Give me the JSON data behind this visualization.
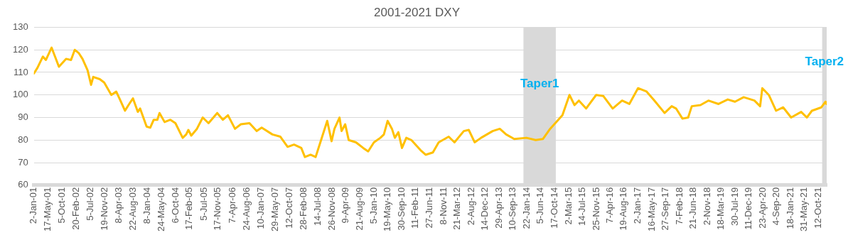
{
  "chart_data": {
    "type": "line",
    "title": "2001-2021 DXY",
    "color": "#ffc000",
    "grid": "y",
    "x": [
      "2001-01-02",
      "2001-02-05",
      "2001-03-30",
      "2001-04-28",
      "2001-06-22",
      "2001-09-01",
      "2001-11-09",
      "2001-12-27",
      "2002-02-01",
      "2002-03-13",
      "2002-04-17",
      "2002-06-05",
      "2002-07-09",
      "2002-07-30",
      "2002-10-01",
      "2002-11-13",
      "2003-01-21",
      "2003-03-09",
      "2003-04-14",
      "2003-06-02",
      "2003-07-06",
      "2003-08-18",
      "2003-10-04",
      "2003-10-26",
      "2003-12-28",
      "2004-02-01",
      "2004-03-06",
      "2004-04-10",
      "2004-05-01",
      "2004-06-19",
      "2004-08-14",
      "2004-10-02",
      "2004-12-11",
      "2005-01-14",
      "2005-02-04",
      "2005-03-04",
      "2005-04-28",
      "2005-06-23",
      "2005-08-18",
      "2005-11-10",
      "2006-01-04",
      "2006-02-22",
      "2006-05-01",
      "2006-06-27",
      "2006-09-18",
      "2006-11-27",
      "2007-01-14",
      "2007-04-28",
      "2007-07-14",
      "2007-09-22",
      "2007-11-23",
      "2008-02-01",
      "2008-03-07",
      "2008-05-01",
      "2008-06-19",
      "2008-08-14",
      "2008-10-09",
      "2008-11-20",
      "2008-12-18",
      "2009-02-05",
      "2009-02-25",
      "2009-04-01",
      "2009-05-05",
      "2009-07-14",
      "2009-09-22",
      "2009-11-09",
      "2010-01-04",
      "2010-03-07",
      "2010-04-10",
      "2010-05-16",
      "2010-06-27",
      "2010-07-25",
      "2010-08-28",
      "2010-10-02",
      "2010-11-13",
      "2011-01-01",
      "2011-03-31",
      "2011-05-19",
      "2011-07-28",
      "2011-09-22",
      "2011-12-28",
      "2012-02-22",
      "2012-05-22",
      "2012-07-09",
      "2012-09-04",
      "2012-11-05",
      "2013-02-25",
      "2013-05-05",
      "2013-07-06",
      "2013-09-22",
      "2014-01-18",
      "2014-04-17",
      "2014-06-27",
      "2014-09-04",
      "2015-01-01",
      "2015-03-10",
      "2015-04-28",
      "2015-06-09",
      "2015-08-18",
      "2015-11-23",
      "2016-02-01",
      "2016-05-01",
      "2016-07-31",
      "2016-10-09",
      "2017-01-01",
      "2017-03-25",
      "2017-06-09",
      "2017-09-15",
      "2017-11-23",
      "2018-01-04",
      "2018-03-07",
      "2018-05-01",
      "2018-06-05",
      "2018-08-28",
      "2018-11-13",
      "2019-02-19",
      "2019-05-19",
      "2019-07-28",
      "2019-10-20",
      "2020-02-01",
      "2020-03-27",
      "2020-04-17",
      "2020-06-19",
      "2020-08-28",
      "2020-11-05",
      "2021-01-21",
      "2021-04-28",
      "2021-06-22",
      "2021-08-10",
      "2021-11-09",
      "2021-12-20",
      "2021-12-31"
    ],
    "values": [
      109.5,
      112,
      117,
      115.5,
      121,
      112.5,
      116,
      115.5,
      120,
      118.5,
      116,
      111,
      104.5,
      108,
      107,
      105.5,
      100,
      101.5,
      98,
      93,
      95.5,
      98.5,
      92.5,
      94,
      86,
      85.5,
      89,
      89,
      92,
      88,
      89,
      87.5,
      81,
      82.5,
      84.5,
      82,
      85,
      90,
      87.5,
      92,
      89,
      91,
      85,
      87,
      87.5,
      84,
      85.5,
      82.5,
      81.5,
      77,
      78,
      76.5,
      72.5,
      73.5,
      72.5,
      80.5,
      88.5,
      79.5,
      85,
      90,
      84,
      87,
      80,
      79,
      76.5,
      75,
      79,
      81,
      82.5,
      88.5,
      85,
      81,
      83.5,
      76.5,
      81,
      80,
      75.5,
      73.5,
      74.5,
      79,
      81.5,
      79,
      84,
      84.5,
      79,
      81,
      84,
      85,
      82.5,
      80.5,
      81,
      80,
      80.5,
      85,
      91,
      100,
      95.5,
      97.5,
      94,
      100,
      99.5,
      94,
      97.5,
      96,
      103,
      101.5,
      97.5,
      92,
      95,
      94,
      89.5,
      90,
      95,
      95.5,
      97.5,
      96,
      98,
      97,
      99,
      97.5,
      95,
      103,
      100,
      93,
      94.5,
      90,
      92.5,
      90,
      93,
      94.5,
      97,
      96
    ],
    "xlim": [
      "2001-01-02",
      "2021-12-31"
    ],
    "xticks": [
      {
        "value": "2001-01-02",
        "label": "2-Jan-01"
      },
      {
        "value": "2001-05-17",
        "label": "17-May-01"
      },
      {
        "value": "2001-10-05",
        "label": "5-Oct-01"
      },
      {
        "value": "2002-02-20",
        "label": "20-Feb-02"
      },
      {
        "value": "2002-07-05",
        "label": "5-Jul-02"
      },
      {
        "value": "2002-11-19",
        "label": "19-Nov-02"
      },
      {
        "value": "2003-04-08",
        "label": "8-Apr-03"
      },
      {
        "value": "2003-08-22",
        "label": "22-Aug-03"
      },
      {
        "value": "2004-01-08",
        "label": "8-Jan-04"
      },
      {
        "value": "2004-05-24",
        "label": "24-May-04"
      },
      {
        "value": "2004-10-06",
        "label": "6-Oct-04"
      },
      {
        "value": "2005-02-17",
        "label": "17-Feb-05"
      },
      {
        "value": "2005-07-05",
        "label": "5-Jul-05"
      },
      {
        "value": "2005-11-17",
        "label": "17-Nov-05"
      },
      {
        "value": "2006-04-07",
        "label": "7-Apr-06"
      },
      {
        "value": "2006-08-24",
        "label": "24-Aug-06"
      },
      {
        "value": "2007-01-10",
        "label": "10-Jan-07"
      },
      {
        "value": "2007-05-29",
        "label": "29-May-07"
      },
      {
        "value": "2007-10-12",
        "label": "12-Oct-07"
      },
      {
        "value": "2008-02-28",
        "label": "28-Feb-08"
      },
      {
        "value": "2008-07-14",
        "label": "14-Jul-08"
      },
      {
        "value": "2008-11-26",
        "label": "26-Nov-08"
      },
      {
        "value": "2009-04-09",
        "label": "9-Apr-09"
      },
      {
        "value": "2009-08-21",
        "label": "21-Aug-09"
      },
      {
        "value": "2010-01-05",
        "label": "5-Jan-10"
      },
      {
        "value": "2010-05-19",
        "label": "19-May-10"
      },
      {
        "value": "2010-09-30",
        "label": "30-Sep-10"
      },
      {
        "value": "2011-02-11",
        "label": "11-Feb-11"
      },
      {
        "value": "2011-06-27",
        "label": "27-Jun-11"
      },
      {
        "value": "2011-11-08",
        "label": "8-Nov-11"
      },
      {
        "value": "2012-03-21",
        "label": "21-Mar-12"
      },
      {
        "value": "2012-08-02",
        "label": "2-Aug-12"
      },
      {
        "value": "2012-12-14",
        "label": "14-Dec-12"
      },
      {
        "value": "2013-04-29",
        "label": "29-Apr-13"
      },
      {
        "value": "2013-09-10",
        "label": "10-Sep-13"
      },
      {
        "value": "2014-01-22",
        "label": "22-Jan-14"
      },
      {
        "value": "2014-06-05",
        "label": "5-Jun-14"
      },
      {
        "value": "2014-10-17",
        "label": "17-Oct-14"
      },
      {
        "value": "2015-03-02",
        "label": "2-Mar-15"
      },
      {
        "value": "2015-07-14",
        "label": "14-Jul-15"
      },
      {
        "value": "2015-11-25",
        "label": "25-Nov-15"
      },
      {
        "value": "2016-04-07",
        "label": "7-Apr-16"
      },
      {
        "value": "2016-08-19",
        "label": "19-Aug-16"
      },
      {
        "value": "2017-01-02",
        "label": "2-Jan-17"
      },
      {
        "value": "2017-05-16",
        "label": "16-May-17"
      },
      {
        "value": "2017-09-27",
        "label": "27-Sep-17"
      },
      {
        "value": "2018-02-07",
        "label": "7-Feb-18"
      },
      {
        "value": "2018-06-21",
        "label": "21-Jun-18"
      },
      {
        "value": "2018-11-02",
        "label": "2-Nov-18"
      },
      {
        "value": "2019-03-18",
        "label": "18-Mar-19"
      },
      {
        "value": "2019-07-30",
        "label": "30-Jul-19"
      },
      {
        "value": "2019-12-11",
        "label": "11-Dec-19"
      },
      {
        "value": "2020-04-23",
        "label": "23-Apr-20"
      },
      {
        "value": "2020-09-04",
        "label": "4-Sep-20"
      },
      {
        "value": "2021-01-18",
        "label": "18-Jan-21"
      },
      {
        "value": "2021-05-31",
        "label": "31-May-21"
      },
      {
        "value": "2021-10-12",
        "label": "12-Oct-21"
      }
    ],
    "ylim": [
      60,
      130
    ],
    "yticks": [
      60,
      70,
      80,
      90,
      100,
      110,
      120,
      130
    ],
    "bands": [
      {
        "axis": "x",
        "from": "2013-12-20",
        "to": "2014-10-29",
        "label": "Taper1",
        "color": "#d9d9d9"
      },
      {
        "axis": "x",
        "from": "2021-11-17",
        "to": "2021-12-31",
        "label": "Taper2",
        "color": "#d9d9d9"
      }
    ]
  }
}
